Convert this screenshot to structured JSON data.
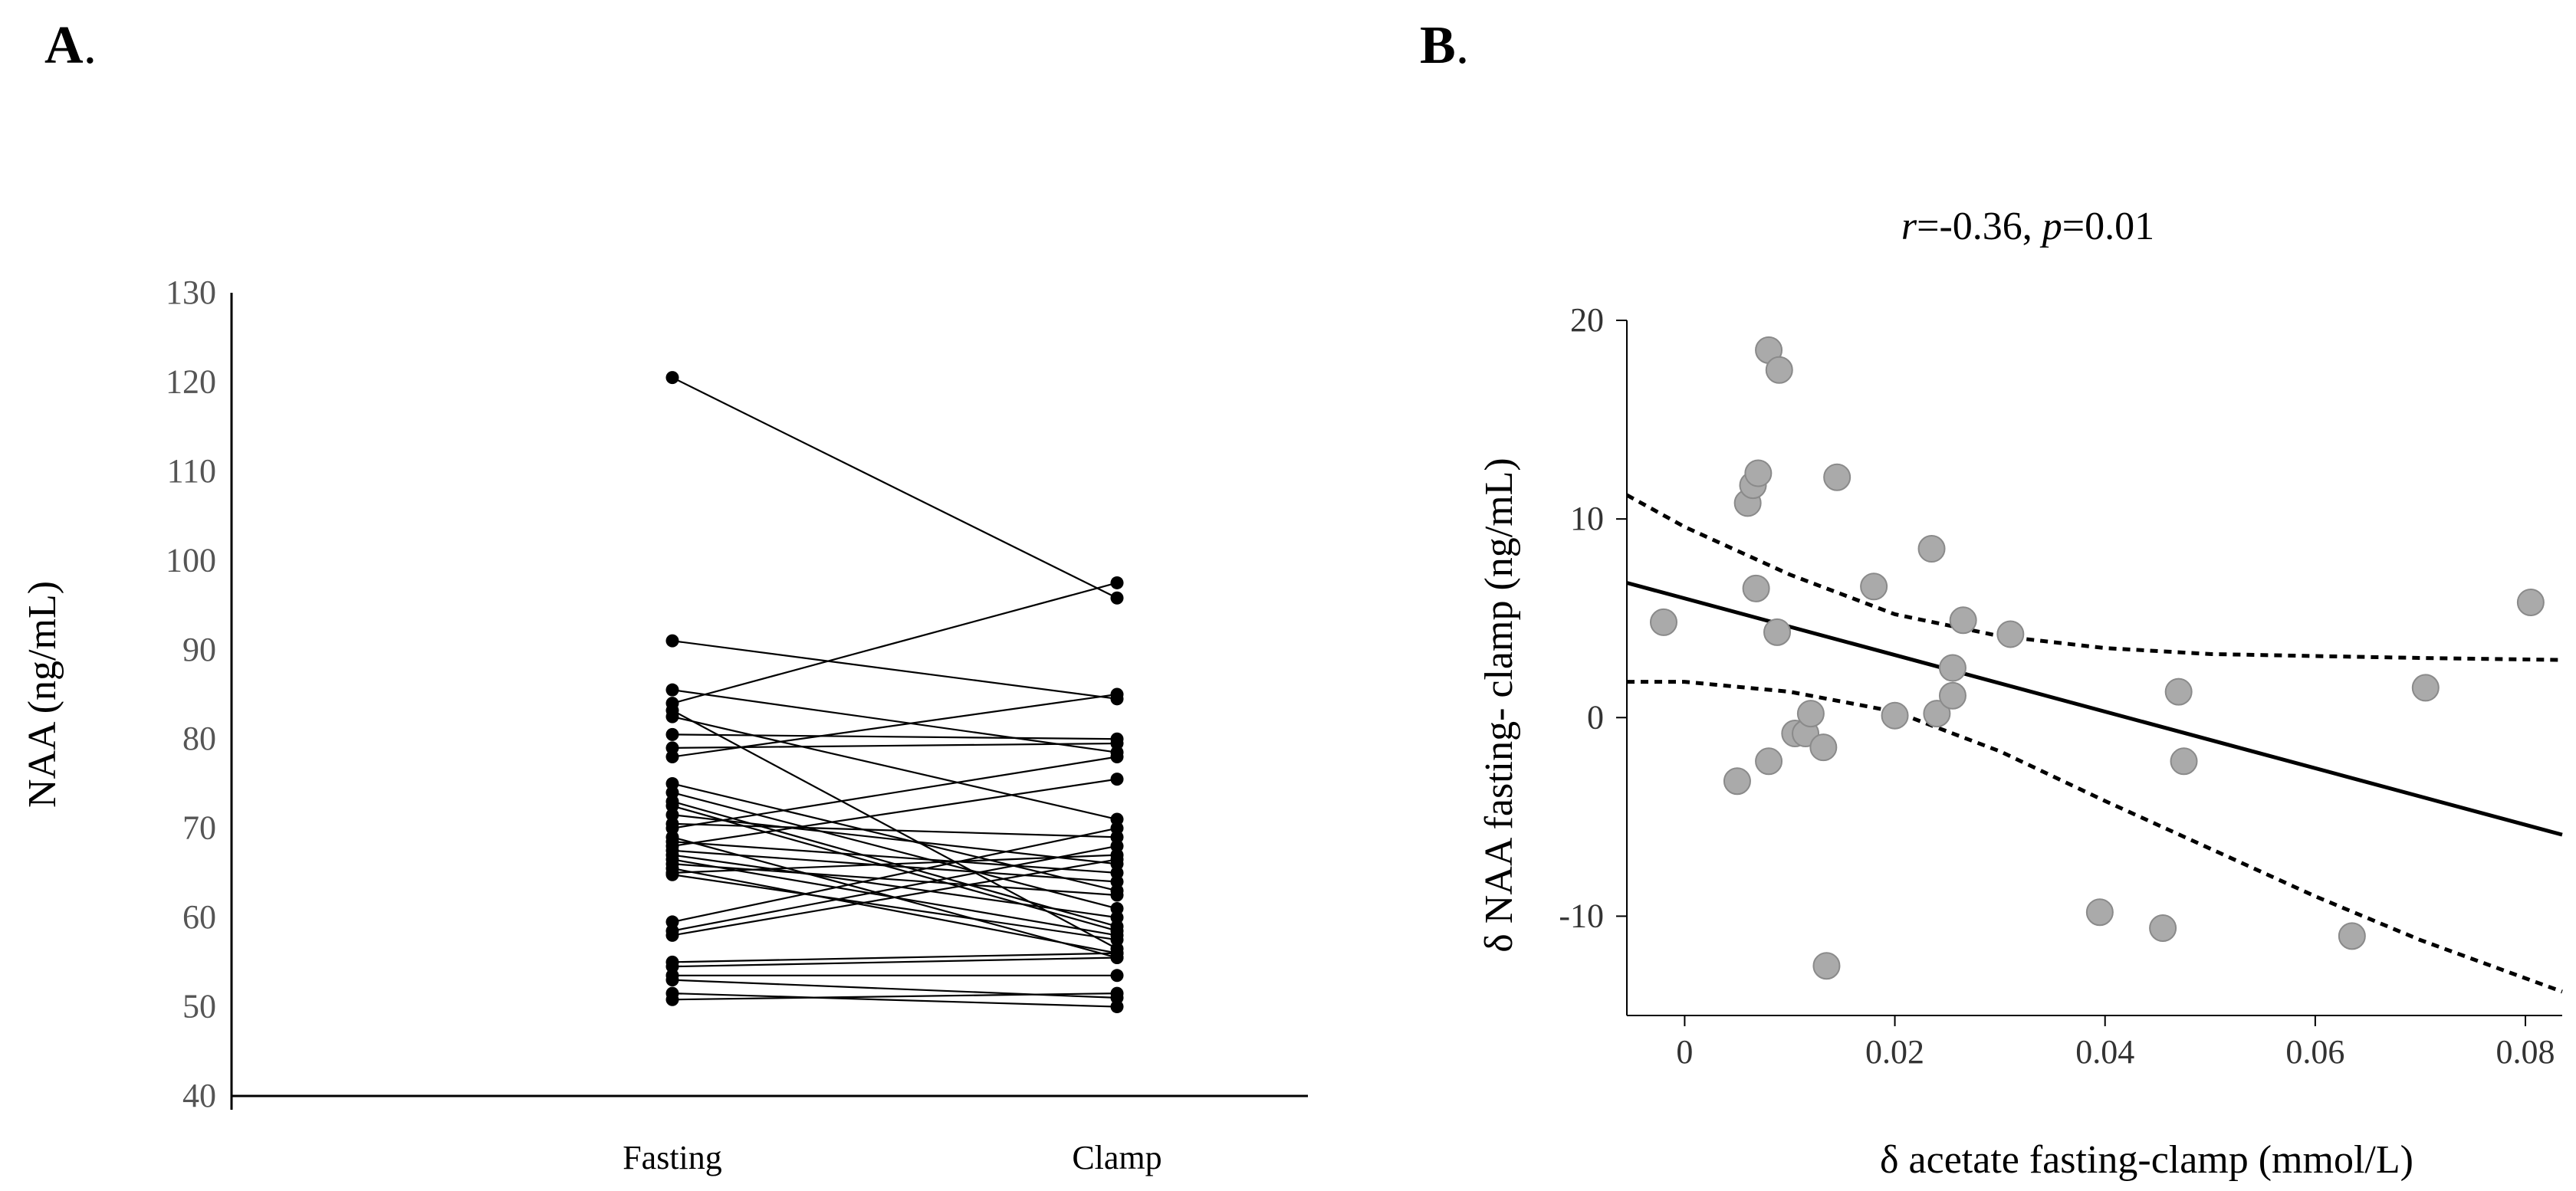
{
  "panels": {
    "a_label": "A",
    "a_dot": ".",
    "b_label": "B",
    "b_dot": "."
  },
  "chart_data": [
    {
      "type": "line",
      "ylabel": "NAA (ng/mL)",
      "categories": [
        "Fasting",
        "Clamp"
      ],
      "ylim": [
        40,
        130
      ],
      "yticks": [
        130,
        120,
        110,
        100,
        90,
        80,
        70,
        60,
        50,
        40
      ],
      "pairs": [
        [
          120.5,
          95.8
        ],
        [
          91.0,
          84.5
        ],
        [
          85.5,
          78.5
        ],
        [
          84.0,
          97.5
        ],
        [
          83.2,
          56.5
        ],
        [
          82.5,
          71.0
        ],
        [
          80.5,
          80.0
        ],
        [
          79.0,
          79.5
        ],
        [
          78.0,
          85.0
        ],
        [
          75.0,
          63.0
        ],
        [
          74.0,
          61.0
        ],
        [
          73.0,
          59.0
        ],
        [
          72.5,
          58.5
        ],
        [
          71.5,
          66.0
        ],
        [
          70.5,
          69.0
        ],
        [
          70.0,
          78.0
        ],
        [
          69.0,
          55.5
        ],
        [
          68.5,
          65.0
        ],
        [
          68.0,
          75.5
        ],
        [
          67.5,
          64.0
        ],
        [
          67.0,
          60.0
        ],
        [
          66.5,
          58.0
        ],
        [
          66.0,
          62.5
        ],
        [
          65.5,
          56.0
        ],
        [
          65.0,
          67.0
        ],
        [
          64.8,
          57.5
        ],
        [
          59.5,
          70.0
        ],
        [
          58.5,
          68.0
        ],
        [
          58.0,
          66.5
        ],
        [
          55.0,
          56.0
        ],
        [
          54.5,
          55.5
        ],
        [
          53.5,
          53.5
        ],
        [
          53.0,
          51.0
        ],
        [
          51.5,
          50.0
        ],
        [
          50.8,
          51.5
        ]
      ]
    },
    {
      "type": "scatter",
      "title_r": "r",
      "title_r_val": "=-0.36, ",
      "title_p": "p",
      "title_p_val": "=0.01",
      "xlabel": "δ acetate fasting-clamp (mmol/L)",
      "ylabel": "δ NAA fasting- clamp (ng/mL)",
      "xlim": [
        -0.0055,
        0.0835
      ],
      "ylim": [
        -15,
        20
      ],
      "xticks": [
        0,
        0.02,
        0.04,
        0.06,
        0.08
      ],
      "xtick_labels": [
        "0",
        "0.02",
        "0.04",
        "0.06",
        "0.08"
      ],
      "yticks": [
        20,
        10,
        0,
        -10
      ],
      "ytick_labels": [
        "20",
        "10",
        "0",
        "-10"
      ],
      "regression": {
        "intercept": 6.0,
        "slope": -142.5
      },
      "ci_upper": [
        [
          -0.0055,
          11.2
        ],
        [
          0.0,
          9.6
        ],
        [
          0.01,
          7.2
        ],
        [
          0.02,
          5.2
        ],
        [
          0.03,
          4.1
        ],
        [
          0.04,
          3.5
        ],
        [
          0.05,
          3.2
        ],
        [
          0.06,
          3.1
        ],
        [
          0.07,
          3.0
        ],
        [
          0.0835,
          2.9
        ]
      ],
      "ci_lower": [
        [
          -0.0055,
          1.8
        ],
        [
          0.0,
          1.8
        ],
        [
          0.01,
          1.3
        ],
        [
          0.02,
          0.3
        ],
        [
          0.03,
          -1.7
        ],
        [
          0.04,
          -4.2
        ],
        [
          0.05,
          -6.6
        ],
        [
          0.06,
          -9.0
        ],
        [
          0.07,
          -11.2
        ],
        [
          0.0835,
          -13.8
        ]
      ],
      "points": [
        [
          -0.002,
          4.8
        ],
        [
          0.005,
          -3.2
        ],
        [
          0.006,
          10.8
        ],
        [
          0.0065,
          11.7
        ],
        [
          0.007,
          12.3
        ],
        [
          0.0068,
          6.5
        ],
        [
          0.008,
          18.5
        ],
        [
          0.008,
          -2.2
        ],
        [
          0.0088,
          4.3
        ],
        [
          0.009,
          17.5
        ],
        [
          0.0105,
          -0.8
        ],
        [
          0.0115,
          -0.8
        ],
        [
          0.012,
          0.2
        ],
        [
          0.0132,
          -1.5
        ],
        [
          0.0135,
          -12.5
        ],
        [
          0.0145,
          12.1
        ],
        [
          0.018,
          6.6
        ],
        [
          0.02,
          0.1
        ],
        [
          0.0235,
          8.5
        ],
        [
          0.024,
          0.2
        ],
        [
          0.0255,
          2.5
        ],
        [
          0.0255,
          1.1
        ],
        [
          0.0265,
          4.9
        ],
        [
          0.031,
          4.2
        ],
        [
          0.0395,
          -9.8
        ],
        [
          0.0455,
          -10.6
        ],
        [
          0.047,
          1.3
        ],
        [
          0.0475,
          -2.2
        ],
        [
          0.0635,
          -11.0
        ],
        [
          0.0705,
          1.5
        ],
        [
          0.0805,
          5.8
        ]
      ]
    }
  ]
}
